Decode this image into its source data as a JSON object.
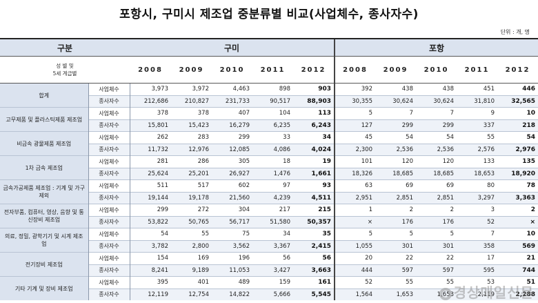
{
  "title": "포항시, 구미시 제조업 중분류별 비교(사업체수, 종사자수)",
  "unit": "단위 : 개, 명",
  "header": {
    "category": "구분",
    "city1": "구미",
    "city2": "포항",
    "row_label_line1": "성 별 및",
    "row_label_line2": "5세 계급별",
    "years": [
      "2008",
      "2009",
      "2010",
      "2011",
      "2012"
    ]
  },
  "row_labels": {
    "biz": "사업체수",
    "emp": "종사자수"
  },
  "categories": [
    {
      "name": "합계",
      "gumi": {
        "biz": [
          "3,973",
          "3,972",
          "4,463",
          "898",
          "903"
        ],
        "emp": [
          "212,686",
          "210,827",
          "231,733",
          "90,517",
          "88,903"
        ]
      },
      "pohang": {
        "biz": [
          "392",
          "438",
          "438",
          "451",
          "446"
        ],
        "emp": [
          "30,355",
          "30,624",
          "30,624",
          "31,810",
          "32,565"
        ]
      }
    },
    {
      "name": "고무제품 및 플라스틱제품 제조업",
      "gumi": {
        "biz": [
          "378",
          "378",
          "407",
          "104",
          "113"
        ],
        "emp": [
          "15,801",
          "15,423",
          "16,279",
          "6,235",
          "6,243"
        ]
      },
      "pohang": {
        "biz": [
          "5",
          "7",
          "7",
          "9",
          "10"
        ],
        "emp": [
          "127",
          "299",
          "299",
          "337",
          "218"
        ]
      }
    },
    {
      "name": "비금속 광물제품 제조업",
      "gumi": {
        "biz": [
          "262",
          "283",
          "299",
          "33",
          "34"
        ],
        "emp": [
          "11,732",
          "12,976",
          "12,085",
          "4,086",
          "4,024"
        ]
      },
      "pohang": {
        "biz": [
          "45",
          "54",
          "54",
          "55",
          "54"
        ],
        "emp": [
          "2,300",
          "2,536",
          "2,536",
          "2,576",
          "2,976"
        ]
      }
    },
    {
      "name": "1차 금속 제조업",
      "gumi": {
        "biz": [
          "281",
          "286",
          "305",
          "18",
          "19"
        ],
        "emp": [
          "25,624",
          "25,201",
          "26,927",
          "1,476",
          "1,661"
        ]
      },
      "pohang": {
        "biz": [
          "101",
          "120",
          "120",
          "133",
          "135"
        ],
        "emp": [
          "18,326",
          "18,685",
          "18,685",
          "18,653",
          "18,920"
        ]
      }
    },
    {
      "name": "금속가공제품 제조업 : 기계 및 가구제외",
      "gumi": {
        "biz": [
          "511",
          "517",
          "602",
          "97",
          "93"
        ],
        "emp": [
          "19,144",
          "19,178",
          "21,560",
          "4,239",
          "4,511"
        ]
      },
      "pohang": {
        "biz": [
          "63",
          "69",
          "69",
          "80",
          "78"
        ],
        "emp": [
          "2,951",
          "2,851",
          "2,851",
          "3,297",
          "3,363"
        ]
      }
    },
    {
      "name": "전자부품, 컴퓨터, 영상, 음향 및 통신장비 제조업",
      "gumi": {
        "biz": [
          "299",
          "272",
          "304",
          "217",
          "215"
        ],
        "emp": [
          "53,822",
          "50,765",
          "56,717",
          "51,580",
          "50,357"
        ]
      },
      "pohang": {
        "biz": [
          "1",
          "2",
          "2",
          "3",
          "2"
        ],
        "emp": [
          "×",
          "176",
          "176",
          "52",
          "×"
        ]
      }
    },
    {
      "name": "의료, 정밀, 광학기기 및 시계 제조업",
      "gumi": {
        "biz": [
          "54",
          "55",
          "75",
          "34",
          "35"
        ],
        "emp": [
          "3,782",
          "2,800",
          "3,562",
          "3,367",
          "2,415"
        ]
      },
      "pohang": {
        "biz": [
          "5",
          "5",
          "5",
          "7",
          "10"
        ],
        "emp": [
          "1,055",
          "301",
          "301",
          "358",
          "569"
        ]
      }
    },
    {
      "name": "전기장비 제조업",
      "gumi": {
        "biz": [
          "154",
          "169",
          "196",
          "56",
          "56"
        ],
        "emp": [
          "8,241",
          "9,189",
          "11,053",
          "3,427",
          "3,663"
        ]
      },
      "pohang": {
        "biz": [
          "20",
          "22",
          "22",
          "17",
          "21"
        ],
        "emp": [
          "444",
          "597",
          "597",
          "595",
          "744"
        ]
      }
    },
    {
      "name": "기타 기계 및 장비 제조업",
      "gumi": {
        "biz": [
          "395",
          "401",
          "489",
          "159",
          "161"
        ],
        "emp": [
          "12,119",
          "12,754",
          "14,822",
          "5,666",
          "5,545"
        ]
      },
      "pohang": {
        "biz": [
          "52",
          "55",
          "55",
          "53",
          "51"
        ],
        "emp": [
          "1,564",
          "1,653",
          "1,653",
          "2,119",
          "2,288"
        ]
      }
    }
  ],
  "watermark": "경상매일신문"
}
